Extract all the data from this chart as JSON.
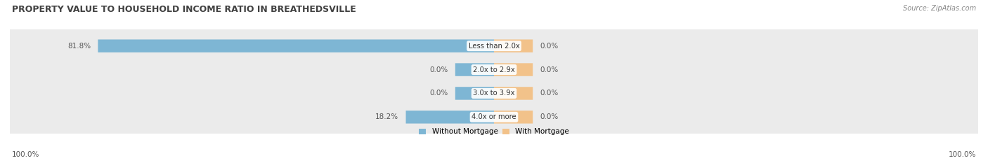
{
  "title": "PROPERTY VALUE TO HOUSEHOLD INCOME RATIO IN BREATHEDSVILLE",
  "source": "Source: ZipAtlas.com",
  "categories": [
    "Less than 2.0x",
    "2.0x to 2.9x",
    "3.0x to 3.9x",
    "4.0x or more"
  ],
  "without_mortgage": [
    81.8,
    0.0,
    0.0,
    18.2
  ],
  "with_mortgage": [
    0.0,
    0.0,
    0.0,
    0.0
  ],
  "blue_color": "#7EB6D4",
  "orange_color": "#F2C28A",
  "bg_row_color": "#EBEBEB",
  "title_color": "#404040",
  "label_color": "#555555",
  "legend_blue": "#7EB6D4",
  "legend_orange": "#F2C28A",
  "xlim": 100,
  "bar_height": 0.52,
  "axis_label_left": "100.0%",
  "axis_label_right": "100.0%",
  "min_bar_width": 8.0
}
